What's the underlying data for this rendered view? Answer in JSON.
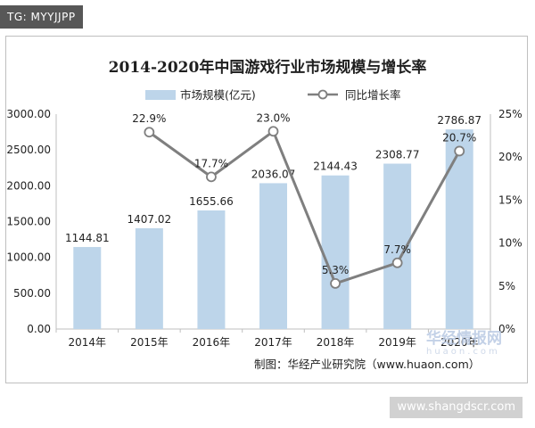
{
  "tag": "TG: MYYJJPP",
  "chart_data": {
    "type": "bar",
    "title": "2014-2020年中国游戏行业市场规模与增长率",
    "categories": [
      "2014年",
      "2015年",
      "2016年",
      "2017年",
      "2018年",
      "2019年",
      "2020年"
    ],
    "series": [
      {
        "name": "市场规模(亿元)",
        "type": "bar",
        "axis": "left",
        "values": [
          1144.81,
          1407.02,
          1655.66,
          2036.07,
          2144.43,
          2308.77,
          2786.87
        ],
        "labels": [
          "1144.81",
          "1407.02",
          "1655.66",
          "2036.07",
          "2144.43",
          "2308.77",
          "2786.87"
        ],
        "color": "#bdd5ea"
      },
      {
        "name": "同比增长率",
        "type": "line",
        "axis": "right",
        "values": [
          null,
          22.9,
          17.7,
          23.0,
          5.3,
          7.7,
          20.7
        ],
        "labels": [
          "",
          "22.9%",
          "17.7%",
          "23.0%",
          "5.3%",
          "7.7%",
          "20.7%"
        ],
        "color": "#7f7f7f"
      }
    ],
    "y_left": {
      "min": 0,
      "max": 3000,
      "ticks": [
        "0.00",
        "500.00",
        "1000.00",
        "1500.00",
        "2000.00",
        "2500.00",
        "3000.00"
      ]
    },
    "y_right": {
      "min": 0,
      "max": 25,
      "ticks": [
        "0%",
        "5%",
        "10%",
        "15%",
        "20%",
        "25%"
      ]
    },
    "legend_position": "top",
    "grid": false,
    "source": "制图：华经产业研究院（www.huaon.com）"
  },
  "watermark": {
    "logo": "华经情报网",
    "url": "huaon.com",
    "site": "www.shangdscr.com"
  }
}
